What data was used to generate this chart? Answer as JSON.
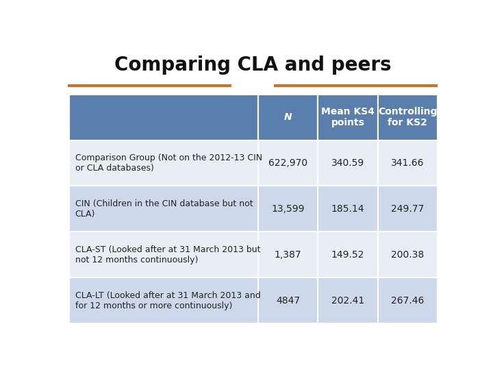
{
  "title": "Comparing CLA and peers",
  "title_fontsize": 20,
  "title_fontweight": "bold",
  "header_bg": "#5b7fad",
  "row_bg_light": "#cdd8ea",
  "row_bg_white": "#e8eef5",
  "header_text_color": "#ffffff",
  "body_text_color": "#222222",
  "orange_line_color": "#c8722a",
  "background_color": "#ffffff",
  "col_headers": [
    "N",
    "Mean KS4\npoints",
    "Controlling\nfor KS2"
  ],
  "rows": [
    {
      "label": "Comparison Group (Not on the 2012-13 CIN\nor CLA databases)",
      "values": [
        "622,970",
        "340.59",
        "341.66"
      ]
    },
    {
      "label": "CIN (Children in the CIN database but not\nCLA)",
      "values": [
        "13,599",
        "185.14",
        "249.77"
      ]
    },
    {
      "label": "CLA-ST (Looked after at 31 March 2013 but\nnot 12 months continuously)",
      "values": [
        "1,387",
        "149.52",
        "200.38"
      ]
    },
    {
      "label": "CLA-LT (Looked after at 31 March 2013 and\nfor 12 months or more continuously)",
      "values": [
        "4847",
        "202.41",
        "267.46"
      ]
    }
  ]
}
